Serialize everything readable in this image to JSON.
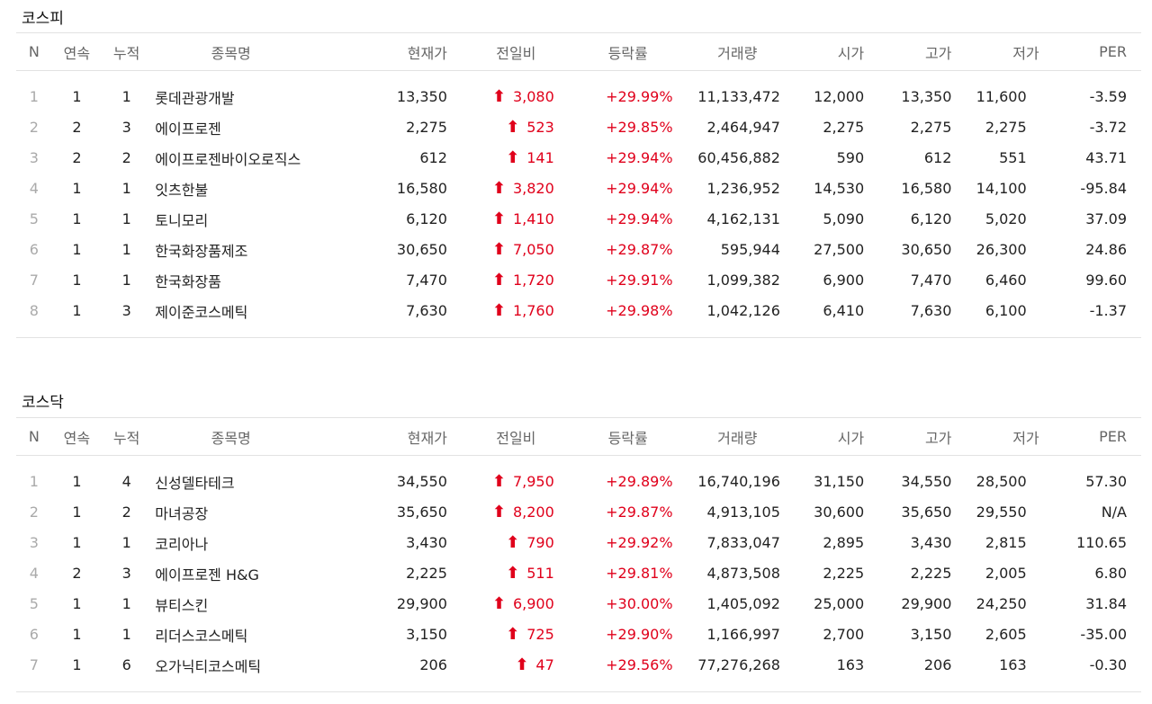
{
  "colors": {
    "up": "#e0001b",
    "rule": "#e2e2e2"
  },
  "headers": [
    "N",
    "연속",
    "누적",
    "종목명",
    "현재가",
    "전일비",
    "등락률",
    "거래량",
    "시가",
    "고가",
    "저가",
    "PER"
  ],
  "icons": {
    "up_arrow": "up-arrow-icon"
  },
  "arrow_glyph": "⬆",
  "sections": [
    {
      "title": "코스피",
      "rows": [
        {
          "n": "1",
          "cons": "1",
          "cum": "1",
          "name": "롯데관광개발",
          "price": "13,350",
          "change": "3,080",
          "rate": "+29.99%",
          "volume": "11,133,472",
          "open": "12,000",
          "high": "13,350",
          "low": "11,600",
          "per": "-3.59"
        },
        {
          "n": "2",
          "cons": "2",
          "cum": "3",
          "name": "에이프로젠",
          "price": "2,275",
          "change": "523",
          "rate": "+29.85%",
          "volume": "2,464,947",
          "open": "2,275",
          "high": "2,275",
          "low": "2,275",
          "per": "-3.72"
        },
        {
          "n": "3",
          "cons": "2",
          "cum": "2",
          "name": "에이프로젠바이오로직스",
          "price": "612",
          "change": "141",
          "rate": "+29.94%",
          "volume": "60,456,882",
          "open": "590",
          "high": "612",
          "low": "551",
          "per": "43.71"
        },
        {
          "n": "4",
          "cons": "1",
          "cum": "1",
          "name": "잇츠한불",
          "price": "16,580",
          "change": "3,820",
          "rate": "+29.94%",
          "volume": "1,236,952",
          "open": "14,530",
          "high": "16,580",
          "low": "14,100",
          "per": "-95.84"
        },
        {
          "n": "5",
          "cons": "1",
          "cum": "1",
          "name": "토니모리",
          "price": "6,120",
          "change": "1,410",
          "rate": "+29.94%",
          "volume": "4,162,131",
          "open": "5,090",
          "high": "6,120",
          "low": "5,020",
          "per": "37.09"
        },
        {
          "n": "6",
          "cons": "1",
          "cum": "1",
          "name": "한국화장품제조",
          "price": "30,650",
          "change": "7,050",
          "rate": "+29.87%",
          "volume": "595,944",
          "open": "27,500",
          "high": "30,650",
          "low": "26,300",
          "per": "24.86"
        },
        {
          "n": "7",
          "cons": "1",
          "cum": "1",
          "name": "한국화장품",
          "price": "7,470",
          "change": "1,720",
          "rate": "+29.91%",
          "volume": "1,099,382",
          "open": "6,900",
          "high": "7,470",
          "low": "6,460",
          "per": "99.60"
        },
        {
          "n": "8",
          "cons": "1",
          "cum": "3",
          "name": "제이준코스메틱",
          "price": "7,630",
          "change": "1,760",
          "rate": "+29.98%",
          "volume": "1,042,126",
          "open": "6,410",
          "high": "7,630",
          "low": "6,100",
          "per": "-1.37"
        }
      ]
    },
    {
      "title": "코스닥",
      "rows": [
        {
          "n": "1",
          "cons": "1",
          "cum": "4",
          "name": "신성델타테크",
          "price": "34,550",
          "change": "7,950",
          "rate": "+29.89%",
          "volume": "16,740,196",
          "open": "31,150",
          "high": "34,550",
          "low": "28,500",
          "per": "57.30"
        },
        {
          "n": "2",
          "cons": "1",
          "cum": "2",
          "name": "마녀공장",
          "price": "35,650",
          "change": "8,200",
          "rate": "+29.87%",
          "volume": "4,913,105",
          "open": "30,600",
          "high": "35,650",
          "low": "29,550",
          "per": "N/A"
        },
        {
          "n": "3",
          "cons": "1",
          "cum": "1",
          "name": "코리아나",
          "price": "3,430",
          "change": "790",
          "rate": "+29.92%",
          "volume": "7,833,047",
          "open": "2,895",
          "high": "3,430",
          "low": "2,815",
          "per": "110.65"
        },
        {
          "n": "4",
          "cons": "2",
          "cum": "3",
          "name": "에이프로젠 H&G",
          "price": "2,225",
          "change": "511",
          "rate": "+29.81%",
          "volume": "4,873,508",
          "open": "2,225",
          "high": "2,225",
          "low": "2,005",
          "per": "6.80"
        },
        {
          "n": "5",
          "cons": "1",
          "cum": "1",
          "name": "뷰티스킨",
          "price": "29,900",
          "change": "6,900",
          "rate": "+30.00%",
          "volume": "1,405,092",
          "open": "25,000",
          "high": "29,900",
          "low": "24,250",
          "per": "31.84"
        },
        {
          "n": "6",
          "cons": "1",
          "cum": "1",
          "name": "리더스코스메틱",
          "price": "3,150",
          "change": "725",
          "rate": "+29.90%",
          "volume": "1,166,997",
          "open": "2,700",
          "high": "3,150",
          "low": "2,605",
          "per": "-35.00"
        },
        {
          "n": "7",
          "cons": "1",
          "cum": "6",
          "name": "오가닉티코스메틱",
          "price": "206",
          "change": "47",
          "rate": "+29.56%",
          "volume": "77,276,268",
          "open": "163",
          "high": "206",
          "low": "163",
          "per": "-0.30"
        }
      ]
    }
  ]
}
